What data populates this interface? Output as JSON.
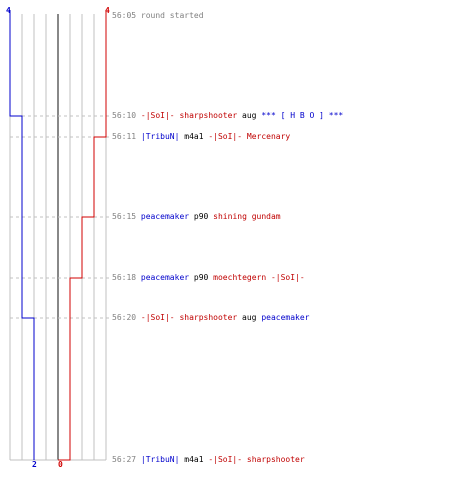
{
  "score_labels": {
    "blue_top": "4",
    "red_top": "4",
    "blue_bottom": "2",
    "red_bottom": "0"
  },
  "colors": {
    "blue": "#0000cc",
    "red": "#d00000",
    "grid": "#c0c0c0",
    "center": "#606060",
    "dash": "#c0c0c0",
    "timestamp": "#808080"
  },
  "events": [
    {
      "time": "56:05",
      "parts": [
        {
          "text": "round started",
          "color": "gray"
        }
      ]
    },
    {
      "time": "56:10",
      "parts": [
        {
          "text": "-|SoI|- sharpshooter",
          "color": "red"
        },
        {
          "text": " aug ",
          "color": "black"
        },
        {
          "text": "*** [ H B O ] ***",
          "color": "blue"
        }
      ]
    },
    {
      "time": "56:11",
      "parts": [
        {
          "text": "|TribuN|",
          "color": "blue"
        },
        {
          "text": " m4a1 ",
          "color": "black"
        },
        {
          "text": "-|SoI|- Mercenary",
          "color": "red"
        }
      ]
    },
    {
      "time": "56:15",
      "parts": [
        {
          "text": "peacemaker",
          "color": "blue"
        },
        {
          "text": " p90 ",
          "color": "black"
        },
        {
          "text": "shining gundam",
          "color": "red"
        }
      ]
    },
    {
      "time": "56:18",
      "parts": [
        {
          "text": "peacemaker",
          "color": "blue"
        },
        {
          "text": " p90 ",
          "color": "black"
        },
        {
          "text": "moechtegern -|SoI|-",
          "color": "red"
        }
      ]
    },
    {
      "time": "56:20",
      "parts": [
        {
          "text": "-|SoI|- sharpshooter",
          "color": "red"
        },
        {
          "text": " aug ",
          "color": "black"
        },
        {
          "text": "peacemaker",
          "color": "blue"
        }
      ]
    },
    {
      "time": "56:27",
      "parts": [
        {
          "text": "|TribuN|",
          "color": "blue"
        },
        {
          "text": " m4a1 ",
          "color": "black"
        },
        {
          "text": "-|SoI|- sharpshooter",
          "color": "red"
        }
      ]
    }
  ]
}
